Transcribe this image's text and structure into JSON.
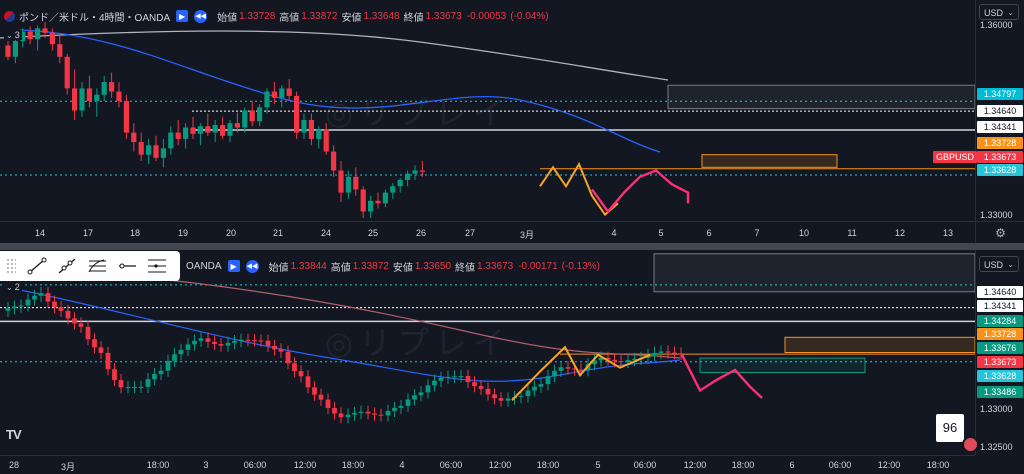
{
  "chart_data": [
    {
      "type": "candlestick",
      "title": "ポンド／米ドル・4時間・OANDA",
      "symbol_tag": "GBPUSD",
      "ohlc_legend": {
        "open_label": "始値",
        "open": "1.33728",
        "high_label": "高値",
        "high": "1.33872",
        "low_label": "安値",
        "low": "1.33648",
        "close_label": "終値",
        "close": "1.33673",
        "change": "-0.00053",
        "change_pct": "(-0.04%)"
      },
      "indicator_count": "3",
      "y_range": [
        1.329,
        1.364
      ],
      "y_ticks": [
        "1.36000",
        "1.33000"
      ],
      "x_ticks": [
        "14",
        "17",
        "18",
        "19",
        "20",
        "21",
        "24",
        "25",
        "26",
        "27",
        "3月",
        "4",
        "5",
        "6",
        "7",
        "10",
        "11",
        "12",
        "13"
      ],
      "price_tags": [
        {
          "value": "1.34797",
          "color": "#00bcd4"
        },
        {
          "value": "1.34640",
          "color": "#ffffff"
        },
        {
          "value": "1.34341",
          "color": "#ffffff"
        },
        {
          "value": "1.33728",
          "color": "#f7931a"
        },
        {
          "value": "1.33673",
          "color": "#f23645"
        },
        {
          "value": "1.33628",
          "color": "#26c6da"
        }
      ],
      "series": {
        "candles": [
          [
            1.3568,
            1.3575,
            1.3545,
            1.355
          ],
          [
            1.355,
            1.3585,
            1.354,
            1.3575
          ],
          [
            1.3575,
            1.3595,
            1.3565,
            1.359
          ],
          [
            1.359,
            1.3598,
            1.357,
            1.3578
          ],
          [
            1.3578,
            1.36,
            1.356,
            1.3595
          ],
          [
            1.3595,
            1.3605,
            1.358,
            1.3588
          ],
          [
            1.3588,
            1.3595,
            1.356,
            1.357
          ],
          [
            1.357,
            1.3585,
            1.354,
            1.355
          ],
          [
            1.355,
            1.3555,
            1.349,
            1.35
          ],
          [
            1.35,
            1.353,
            1.345,
            1.3465
          ],
          [
            1.3465,
            1.351,
            1.3455,
            1.35
          ],
          [
            1.35,
            1.352,
            1.347,
            1.348
          ],
          [
            1.348,
            1.35,
            1.3455,
            1.349
          ],
          [
            1.349,
            1.352,
            1.348,
            1.351
          ],
          [
            1.351,
            1.3525,
            1.3485,
            1.3495
          ],
          [
            1.3495,
            1.351,
            1.347,
            1.348
          ],
          [
            1.348,
            1.349,
            1.342,
            1.343
          ],
          [
            1.343,
            1.3445,
            1.34,
            1.3415
          ],
          [
            1.3415,
            1.343,
            1.3385,
            1.3395
          ],
          [
            1.3395,
            1.342,
            1.338,
            1.341
          ],
          [
            1.341,
            1.3425,
            1.3385,
            1.339
          ],
          [
            1.339,
            1.342,
            1.3375,
            1.3405
          ],
          [
            1.3405,
            1.344,
            1.3395,
            1.343
          ],
          [
            1.343,
            1.345,
            1.341,
            1.342
          ],
          [
            1.342,
            1.3445,
            1.3405,
            1.3438
          ],
          [
            1.3438,
            1.3455,
            1.342,
            1.3428
          ],
          [
            1.3428,
            1.3445,
            1.341,
            1.344
          ],
          [
            1.344,
            1.346,
            1.3425,
            1.343
          ],
          [
            1.343,
            1.345,
            1.3415,
            1.3442
          ],
          [
            1.3442,
            1.3455,
            1.342,
            1.3425
          ],
          [
            1.3425,
            1.345,
            1.3415,
            1.3445
          ],
          [
            1.3445,
            1.3462,
            1.343,
            1.3438
          ],
          [
            1.3438,
            1.347,
            1.343,
            1.3465
          ],
          [
            1.3465,
            1.348,
            1.344,
            1.3448
          ],
          [
            1.3448,
            1.3475,
            1.344,
            1.347
          ],
          [
            1.347,
            1.35,
            1.346,
            1.3495
          ],
          [
            1.3495,
            1.351,
            1.3475,
            1.3485
          ],
          [
            1.3485,
            1.3505,
            1.347,
            1.35
          ],
          [
            1.35,
            1.3515,
            1.348,
            1.3488
          ],
          [
            1.3488,
            1.3495,
            1.342,
            1.343
          ],
          [
            1.343,
            1.346,
            1.342,
            1.345
          ],
          [
            1.345,
            1.346,
            1.341,
            1.342
          ],
          [
            1.342,
            1.344,
            1.3405,
            1.3435
          ],
          [
            1.3435,
            1.3445,
            1.3395,
            1.34
          ],
          [
            1.34,
            1.341,
            1.336,
            1.337
          ],
          [
            1.337,
            1.3385,
            1.332,
            1.3335
          ],
          [
            1.3335,
            1.337,
            1.3325,
            1.336
          ],
          [
            1.336,
            1.3375,
            1.333,
            1.334
          ],
          [
            1.334,
            1.3345,
            1.3295,
            1.3305
          ],
          [
            1.3305,
            1.333,
            1.3295,
            1.3322
          ],
          [
            1.3322,
            1.3335,
            1.331,
            1.3318
          ],
          [
            1.3318,
            1.334,
            1.3312,
            1.3335
          ],
          [
            1.3335,
            1.335,
            1.3325,
            1.3345
          ],
          [
            1.3345,
            1.3358,
            1.3335,
            1.3355
          ],
          [
            1.3355,
            1.337,
            1.3345,
            1.3365
          ],
          [
            1.3365,
            1.3378,
            1.3355,
            1.337
          ],
          [
            1.337,
            1.3385,
            1.336,
            1.3368
          ]
        ],
        "projection_yellow": [
          1.3345,
          1.3375,
          1.3345,
          1.338,
          1.333,
          1.33,
          1.3318
        ],
        "projection_pink": [
          1.334,
          1.3305,
          1.3335,
          1.336,
          1.337,
          1.3348,
          1.3335
        ]
      }
    },
    {
      "type": "candlestick",
      "title": "OANDA",
      "ohlc_legend": {
        "open_label": "始値",
        "open": "1.33844",
        "high_label": "高値",
        "high": "1.33872",
        "low_label": "安値",
        "low": "1.33650",
        "close_label": "終値",
        "close": "1.33673",
        "change": "-0.00171",
        "change_pct": "(-0.13%)"
      },
      "indicator_count": "2",
      "y_range": [
        1.324,
        1.351
      ],
      "y_ticks": [
        "1.33000",
        "1.32500"
      ],
      "x_ticks": [
        "28",
        "3月",
        "18:00",
        "3",
        "06:00",
        "12:00",
        "18:00",
        "4",
        "06:00",
        "12:00",
        "18:00",
        "5",
        "06:00",
        "12:00",
        "18:00",
        "6",
        "06:00",
        "12:00",
        "18:00"
      ],
      "price_tags": [
        {
          "value": "1.34640",
          "color": "#ffffff"
        },
        {
          "value": "1.34341",
          "color": "#ffffff"
        },
        {
          "value": "1.34284",
          "color": "#089981"
        },
        {
          "value": "1.33728",
          "color": "#f7931a"
        },
        {
          "value": "1.33676",
          "color": "#089981"
        },
        {
          "value": "1.33673",
          "color": "#f23645"
        },
        {
          "value": "1.33628",
          "color": "#26c6da"
        },
        {
          "value": "1.33486",
          "color": "#089981"
        }
      ],
      "chart_badge": "96"
    }
  ],
  "toolbar": {
    "tools": [
      "trend-line",
      "ray",
      "fib-retracement",
      "horizontal-ray",
      "parallel-lines"
    ]
  },
  "currency_selector": "USD",
  "watermark": "◎リプレイ"
}
